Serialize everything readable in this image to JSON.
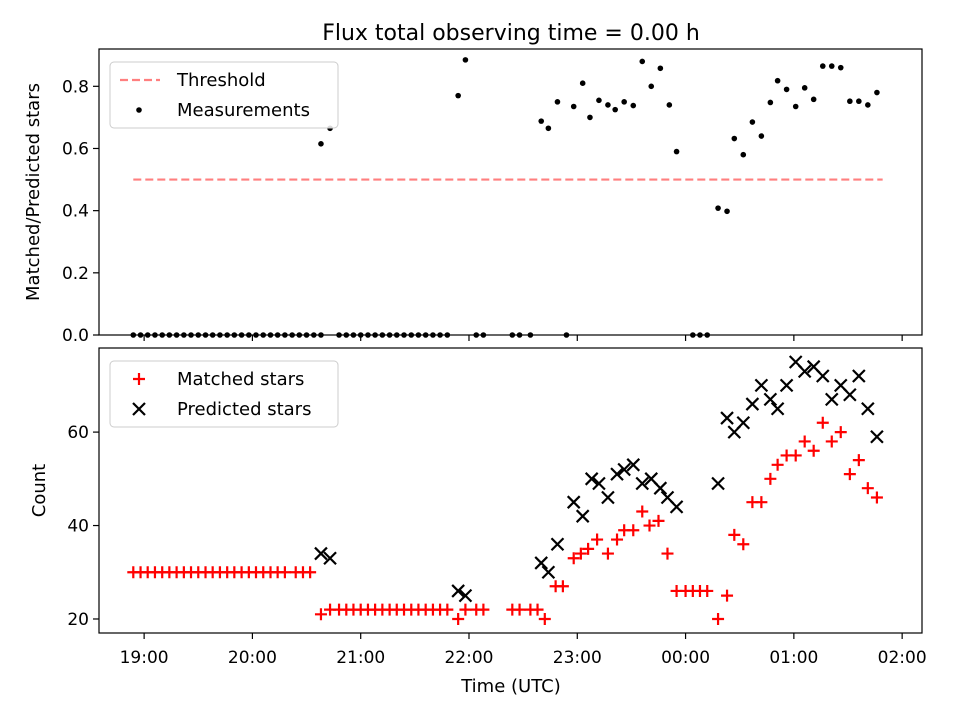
{
  "figure": {
    "title": "Flux total observing time = 0.00 h",
    "shared_xlabel": "Time (UTC)",
    "x_tick_labels": [
      "19:00",
      "20:00",
      "21:00",
      "22:00",
      "23:00",
      "00:00",
      "01:00",
      "02:00"
    ]
  },
  "chart_data": [
    {
      "type": "scatter",
      "panel": "top",
      "title": "Flux total observing time = 0.00 h",
      "xlabel": "",
      "ylabel": "Matched/Predicted stars",
      "x_unit": "hours since 19:00 UTC",
      "xlim": [
        -0.4167,
        7.1833
      ],
      "ylim": [
        0,
        0.92
      ],
      "yticks": [
        0.0,
        0.2,
        0.4,
        0.6,
        0.8
      ],
      "ytick_labels": [
        "0.0",
        "0.2",
        "0.4",
        "0.6",
        "0.8"
      ],
      "legend": {
        "location": "upper-left"
      },
      "grid": false,
      "threshold": {
        "name": "Threshold",
        "value": 0.5,
        "x_range": [
          -0.1,
          6.82
        ],
        "color": "#ff7f7f",
        "style": "dashed"
      },
      "series": [
        {
          "name": "Measurements",
          "color": "#000000",
          "marker": "dot",
          "points": [
            [
              -0.1,
              0
            ],
            [
              -0.033,
              0
            ],
            [
              0.033,
              0
            ],
            [
              0.1,
              0
            ],
            [
              0.167,
              0
            ],
            [
              0.233,
              0
            ],
            [
              0.3,
              0
            ],
            [
              0.367,
              0
            ],
            [
              0.433,
              0
            ],
            [
              0.5,
              0
            ],
            [
              0.567,
              0
            ],
            [
              0.633,
              0
            ],
            [
              0.7,
              0
            ],
            [
              0.767,
              0
            ],
            [
              0.833,
              0
            ],
            [
              0.9,
              0
            ],
            [
              0.967,
              0
            ],
            [
              1.033,
              0
            ],
            [
              1.1,
              0
            ],
            [
              1.167,
              0
            ],
            [
              1.233,
              0
            ],
            [
              1.3,
              0
            ],
            [
              1.367,
              0
            ],
            [
              1.433,
              0
            ],
            [
              1.5,
              0
            ],
            [
              1.567,
              0
            ],
            [
              1.633,
              0
            ],
            [
              1.633,
              0.615
            ],
            [
              1.717,
              0.665
            ],
            [
              1.8,
              0
            ],
            [
              1.867,
              0
            ],
            [
              1.933,
              0
            ],
            [
              2.0,
              0
            ],
            [
              2.067,
              0
            ],
            [
              2.133,
              0
            ],
            [
              2.2,
              0
            ],
            [
              2.267,
              0
            ],
            [
              2.333,
              0
            ],
            [
              2.4,
              0
            ],
            [
              2.467,
              0
            ],
            [
              2.533,
              0
            ],
            [
              2.6,
              0
            ],
            [
              2.667,
              0
            ],
            [
              2.733,
              0
            ],
            [
              2.8,
              0
            ],
            [
              2.9,
              0.77
            ],
            [
              2.967,
              0.885
            ],
            [
              3.067,
              0
            ],
            [
              3.133,
              0
            ],
            [
              3.4,
              0
            ],
            [
              3.467,
              0
            ],
            [
              3.567,
              0
            ],
            [
              3.667,
              0.688
            ],
            [
              3.733,
              0.665
            ],
            [
              3.817,
              0.75
            ],
            [
              3.9,
              0
            ],
            [
              3.967,
              0.735
            ],
            [
              4.05,
              0.81
            ],
            [
              4.117,
              0.7
            ],
            [
              4.2,
              0.755
            ],
            [
              4.283,
              0.74
            ],
            [
              4.35,
              0.725
            ],
            [
              4.433,
              0.75
            ],
            [
              4.517,
              0.738
            ],
            [
              4.6,
              0.88
            ],
            [
              4.683,
              0.8
            ],
            [
              4.767,
              0.858
            ],
            [
              4.85,
              0.74
            ],
            [
              4.917,
              0.59
            ],
            [
              5.067,
              0
            ],
            [
              5.133,
              0
            ],
            [
              5.2,
              0
            ],
            [
              5.3,
              0.408
            ],
            [
              5.383,
              0.398
            ],
            [
              5.45,
              0.632
            ],
            [
              5.533,
              0.58
            ],
            [
              5.617,
              0.685
            ],
            [
              5.7,
              0.64
            ],
            [
              5.783,
              0.748
            ],
            [
              5.85,
              0.818
            ],
            [
              5.933,
              0.79
            ],
            [
              6.017,
              0.735
            ],
            [
              6.1,
              0.795
            ],
            [
              6.183,
              0.758
            ],
            [
              6.267,
              0.865
            ],
            [
              6.35,
              0.865
            ],
            [
              6.433,
              0.86
            ],
            [
              6.517,
              0.752
            ],
            [
              6.6,
              0.752
            ],
            [
              6.683,
              0.74
            ],
            [
              6.767,
              0.78
            ]
          ]
        }
      ]
    },
    {
      "type": "scatter",
      "panel": "bottom",
      "title": "",
      "xlabel": "Time (UTC)",
      "ylabel": "Count",
      "x_unit": "hours since 19:00 UTC",
      "xlim": [
        -0.4167,
        7.1833
      ],
      "ylim": [
        17,
        78
      ],
      "yticks": [
        20,
        40,
        60
      ],
      "ytick_labels": [
        "20",
        "40",
        "60"
      ],
      "legend": {
        "location": "upper-left"
      },
      "grid": false,
      "series": [
        {
          "name": "Matched stars",
          "color": "#ff0000",
          "marker": "plus",
          "points": [
            [
              -0.1,
              30
            ],
            [
              -0.033,
              30
            ],
            [
              0.033,
              30
            ],
            [
              0.1,
              30
            ],
            [
              0.167,
              30
            ],
            [
              0.233,
              30
            ],
            [
              0.3,
              30
            ],
            [
              0.367,
              30
            ],
            [
              0.433,
              30
            ],
            [
              0.5,
              30
            ],
            [
              0.567,
              30
            ],
            [
              0.633,
              30
            ],
            [
              0.7,
              30
            ],
            [
              0.767,
              30
            ],
            [
              0.833,
              30
            ],
            [
              0.9,
              30
            ],
            [
              0.967,
              30
            ],
            [
              1.033,
              30
            ],
            [
              1.1,
              30
            ],
            [
              1.167,
              30
            ],
            [
              1.233,
              30
            ],
            [
              1.3,
              30
            ],
            [
              1.4,
              30
            ],
            [
              1.467,
              30
            ],
            [
              1.533,
              30
            ],
            [
              1.633,
              21
            ],
            [
              1.717,
              22
            ],
            [
              1.8,
              22
            ],
            [
              1.867,
              22
            ],
            [
              1.933,
              22
            ],
            [
              2.0,
              22
            ],
            [
              2.067,
              22
            ],
            [
              2.133,
              22
            ],
            [
              2.2,
              22
            ],
            [
              2.267,
              22
            ],
            [
              2.333,
              22
            ],
            [
              2.4,
              22
            ],
            [
              2.467,
              22
            ],
            [
              2.533,
              22
            ],
            [
              2.6,
              22
            ],
            [
              2.667,
              22
            ],
            [
              2.733,
              22
            ],
            [
              2.8,
              22
            ],
            [
              2.9,
              20
            ],
            [
              2.967,
              22
            ],
            [
              3.067,
              22
            ],
            [
              3.133,
              22
            ],
            [
              3.4,
              22
            ],
            [
              3.467,
              22
            ],
            [
              3.567,
              22
            ],
            [
              3.633,
              22
            ],
            [
              3.7,
              20
            ],
            [
              3.8,
              27
            ],
            [
              3.867,
              27
            ],
            [
              3.967,
              33
            ],
            [
              4.033,
              34
            ],
            [
              4.1,
              35
            ],
            [
              4.183,
              37
            ],
            [
              4.283,
              34
            ],
            [
              4.367,
              37
            ],
            [
              4.433,
              39
            ],
            [
              4.517,
              39
            ],
            [
              4.6,
              43
            ],
            [
              4.667,
              40
            ],
            [
              4.75,
              41
            ],
            [
              4.833,
              34
            ],
            [
              4.917,
              26
            ],
            [
              5.0,
              26
            ],
            [
              5.067,
              26
            ],
            [
              5.133,
              26
            ],
            [
              5.2,
              26
            ],
            [
              5.3,
              20
            ],
            [
              5.383,
              25
            ],
            [
              5.45,
              38
            ],
            [
              5.533,
              36
            ],
            [
              5.617,
              45
            ],
            [
              5.7,
              45
            ],
            [
              5.783,
              50
            ],
            [
              5.85,
              53
            ],
            [
              5.933,
              55
            ],
            [
              6.017,
              55
            ],
            [
              6.1,
              58
            ],
            [
              6.183,
              56
            ],
            [
              6.267,
              62
            ],
            [
              6.35,
              58
            ],
            [
              6.433,
              60
            ],
            [
              6.517,
              51
            ],
            [
              6.6,
              54
            ],
            [
              6.683,
              48
            ],
            [
              6.767,
              46
            ]
          ]
        },
        {
          "name": "Predicted stars",
          "color": "#000000",
          "marker": "x",
          "points": [
            [
              1.633,
              34
            ],
            [
              1.717,
              33
            ],
            [
              2.9,
              26
            ],
            [
              2.967,
              25
            ],
            [
              3.667,
              32
            ],
            [
              3.733,
              30
            ],
            [
              3.817,
              36
            ],
            [
              3.967,
              45
            ],
            [
              4.05,
              42
            ],
            [
              4.133,
              50
            ],
            [
              4.2,
              49
            ],
            [
              4.283,
              46
            ],
            [
              4.367,
              51
            ],
            [
              4.433,
              52
            ],
            [
              4.517,
              53
            ],
            [
              4.6,
              49
            ],
            [
              4.683,
              50
            ],
            [
              4.767,
              48
            ],
            [
              4.833,
              46
            ],
            [
              4.917,
              44
            ],
            [
              5.3,
              49
            ],
            [
              5.383,
              63
            ],
            [
              5.45,
              60
            ],
            [
              5.533,
              62
            ],
            [
              5.617,
              66
            ],
            [
              5.7,
              70
            ],
            [
              5.783,
              67
            ],
            [
              5.85,
              65
            ],
            [
              5.933,
              70
            ],
            [
              6.017,
              75
            ],
            [
              6.1,
              73
            ],
            [
              6.183,
              74
            ],
            [
              6.267,
              72
            ],
            [
              6.35,
              67
            ],
            [
              6.433,
              70
            ],
            [
              6.517,
              68
            ],
            [
              6.6,
              72
            ],
            [
              6.683,
              65
            ],
            [
              6.767,
              59
            ]
          ]
        }
      ]
    }
  ]
}
